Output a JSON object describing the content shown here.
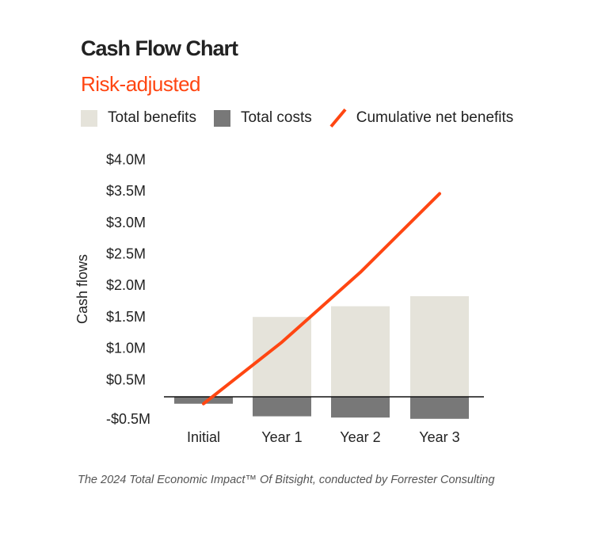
{
  "chart_data": {
    "type": "bar",
    "title": "Cash Flow Chart",
    "subtitle": "Risk-adjusted",
    "ylabel": "Cash flows",
    "xlabel": "",
    "categories": [
      "Initial",
      "Year 1",
      "Year 2",
      "Year 3"
    ],
    "series": [
      {
        "name": "Total benefits",
        "type": "bar",
        "color": "#e5e3da",
        "values": [
          0,
          1.27,
          1.44,
          1.6
        ]
      },
      {
        "name": "Total costs",
        "type": "bar",
        "color": "#787878",
        "values": [
          -0.11,
          -0.31,
          -0.33,
          -0.35
        ]
      },
      {
        "name": "Cumulative net benefits",
        "type": "line",
        "color": "#ff4612",
        "values": [
          -0.11,
          0.87,
          1.98,
          3.23
        ]
      }
    ],
    "yticks": [
      {
        "value": 4.0,
        "label": "$4.0M"
      },
      {
        "value": 3.5,
        "label": "$3.5M"
      },
      {
        "value": 3.0,
        "label": "$3.0M"
      },
      {
        "value": 2.5,
        "label": "$2.5M"
      },
      {
        "value": 2.0,
        "label": "$2.0M"
      },
      {
        "value": 1.5,
        "label": "$1.5M"
      },
      {
        "value": 1.0,
        "label": "$1.0M"
      },
      {
        "value": 0.5,
        "label": "$0.5M"
      },
      {
        "value": -0.5,
        "label": "-$0.5M"
      }
    ],
    "ylim": [
      -0.5,
      4.0
    ],
    "units": "$M",
    "grid": false,
    "legend_position": "top"
  },
  "footer": "The 2024 Total Economic Impact™ Of Bitsight, conducted by Forrester Consulting"
}
